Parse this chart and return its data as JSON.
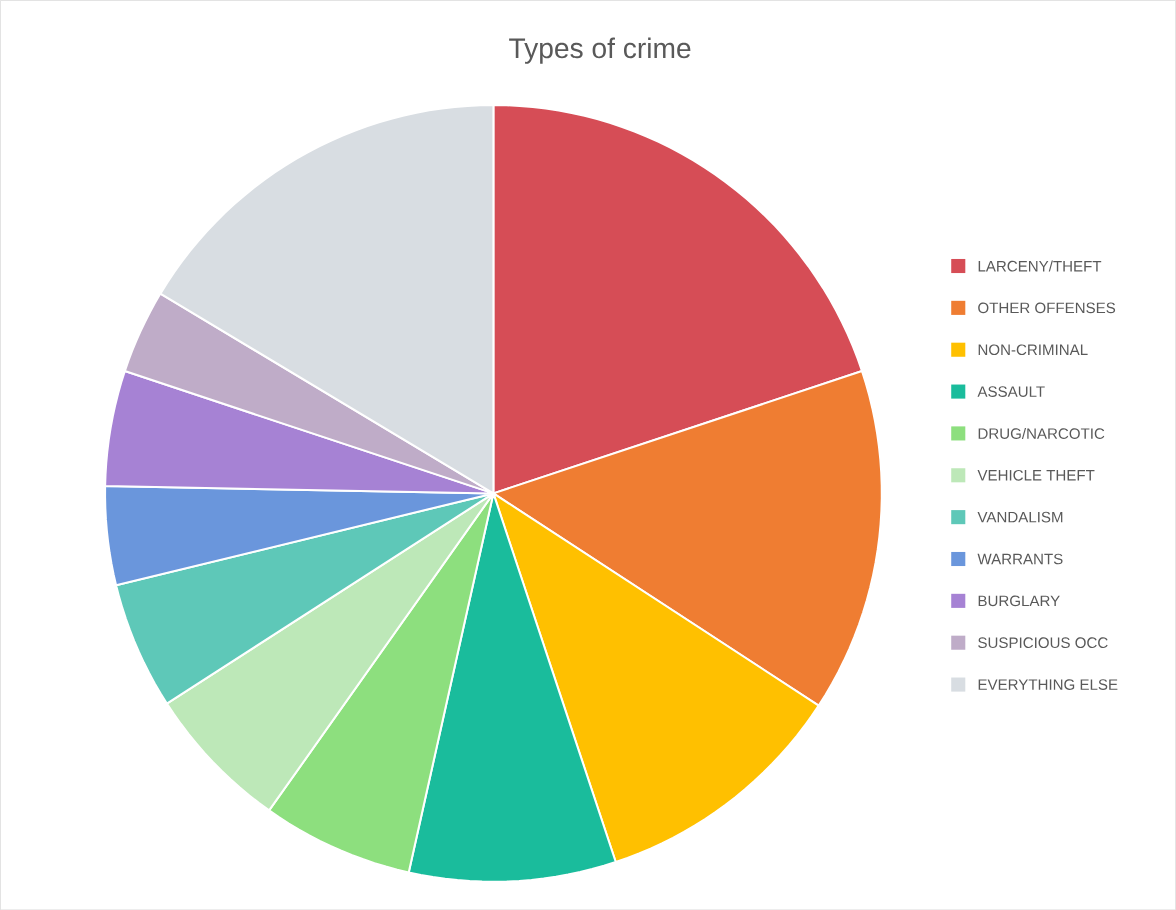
{
  "chart_data": {
    "type": "pie",
    "title": "Types of crime",
    "categories": [
      "LARCENY/THEFT",
      "OTHER OFFENSES",
      "NON-CRIMINAL",
      "ASSAULT",
      "DRUG/NARCOTIC",
      "VEHICLE THEFT",
      "VANDALISM",
      "WARRANTS",
      "BURGLARY",
      "SUSPICIOUS OCC",
      "EVERYTHING ELSE"
    ],
    "values": [
      19.9,
      14.3,
      10.7,
      8.6,
      6.3,
      6.1,
      5.3,
      4.1,
      4.8,
      3.5,
      16.4
    ],
    "colors": [
      "#d64d56",
      "#ef7d32",
      "#ffc000",
      "#1abc9c",
      "#8ddf7e",
      "#bde8b8",
      "#5ec8b8",
      "#6a96dc",
      "#a682d4",
      "#bfacc8",
      "#d8dde2"
    ],
    "legend": "right"
  }
}
